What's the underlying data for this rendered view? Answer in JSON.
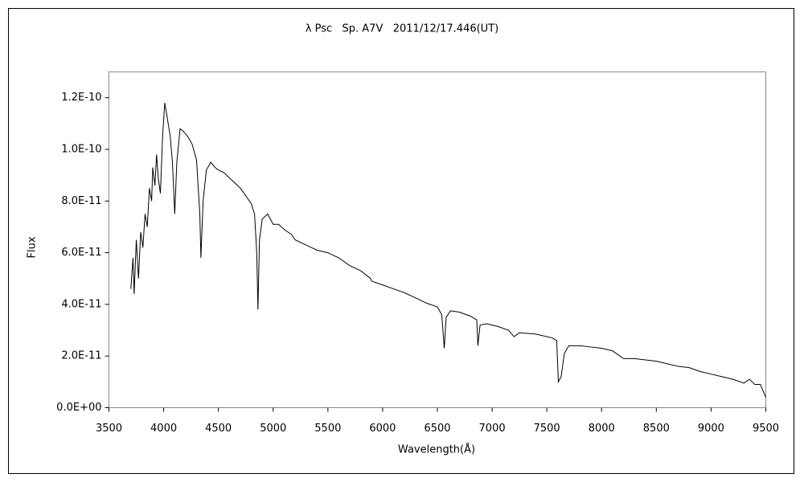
{
  "chart_data": {
    "type": "line",
    "title": "λ Psc   Sp. A7V   2011/12/17.446(UT)",
    "xlabel": "Wavelength(Å)",
    "ylabel": "Flux",
    "color": "#000000",
    "x": [
      3700,
      3720,
      3730,
      3750,
      3770,
      3790,
      3810,
      3830,
      3850,
      3870,
      3890,
      3900,
      3920,
      3935,
      3950,
      3970,
      3990,
      4010,
      4030,
      4060,
      4080,
      4101,
      4120,
      4150,
      4180,
      4220,
      4260,
      4300,
      4330,
      4340,
      4360,
      4390,
      4430,
      4470,
      4500,
      4550,
      4600,
      4650,
      4700,
      4750,
      4800,
      4830,
      4850,
      4861,
      4875,
      4900,
      4950,
      5000,
      5050,
      5100,
      5170,
      5200,
      5300,
      5400,
      5500,
      5600,
      5700,
      5800,
      5890,
      5900,
      6000,
      6100,
      6200,
      6300,
      6400,
      6500,
      6540,
      6563,
      6580,
      6620,
      6700,
      6800,
      6860,
      6870,
      6890,
      6950,
      7050,
      7150,
      7200,
      7250,
      7400,
      7550,
      7590,
      7605,
      7630,
      7660,
      7700,
      7800,
      7900,
      8000,
      8100,
      8150,
      8200,
      8300,
      8400,
      8500,
      8600,
      8700,
      8800,
      8900,
      9000,
      9100,
      9200,
      9300,
      9350,
      9400,
      9450,
      9480,
      9500
    ],
    "values": [
      4.6e-11,
      5.8e-11,
      4.4e-11,
      6.5e-11,
      5e-11,
      6.8e-11,
      6.2e-11,
      7.5e-11,
      7e-11,
      8.5e-11,
      8e-11,
      9.3e-11,
      8.6e-11,
      9.8e-11,
      8.9e-11,
      8.3e-11,
      1.05e-10,
      1.18e-10,
      1.13e-10,
      1.05e-10,
      9.5e-11,
      7.5e-11,
      9.5e-11,
      1.08e-10,
      1.07e-10,
      1.05e-10,
      1.02e-10,
      9.6e-11,
      7.5e-11,
      5.8e-11,
      8e-11,
      9.2e-11,
      9.5e-11,
      9.3e-11,
      9.2e-11,
      9.1e-11,
      8.9e-11,
      8.7e-11,
      8.5e-11,
      8.2e-11,
      7.9e-11,
      7.5e-11,
      6e-11,
      3.8e-11,
      6.5e-11,
      7.3e-11,
      7.5e-11,
      7.1e-11,
      7.1e-11,
      6.9e-11,
      6.7e-11,
      6.5e-11,
      6.3e-11,
      6.1e-11,
      6e-11,
      5.8e-11,
      5.5e-11,
      5.3e-11,
      5e-11,
      4.9e-11,
      4.75e-11,
      4.6e-11,
      4.45e-11,
      4.25e-11,
      4.05e-11,
      3.9e-11,
      3.6e-11,
      2.3e-11,
      3.5e-11,
      3.75e-11,
      3.7e-11,
      3.55e-11,
      3.4e-11,
      2.4e-11,
      3.2e-11,
      3.25e-11,
      3.15e-11,
      3e-11,
      2.75e-11,
      2.9e-11,
      2.85e-11,
      2.7e-11,
      2.6e-11,
      1e-11,
      1.2e-11,
      2.1e-11,
      2.4e-11,
      2.4e-11,
      2.35e-11,
      2.3e-11,
      2.2e-11,
      2.05e-11,
      1.9e-11,
      1.9e-11,
      1.85e-11,
      1.8e-11,
      1.7e-11,
      1.6e-11,
      1.55e-11,
      1.4e-11,
      1.3e-11,
      1.2e-11,
      1.1e-11,
      9.5e-12,
      1.1e-11,
      9e-12,
      9e-12,
      6e-12,
      4e-12
    ],
    "xlim": [
      3500,
      9500
    ],
    "xticks": [
      3500,
      4000,
      4500,
      5000,
      5500,
      6000,
      6500,
      7000,
      7500,
      8000,
      8500,
      9000,
      9500
    ],
    "ylim": [
      0,
      1.3e-10
    ],
    "yticks": [
      {
        "value": 0,
        "label": "0.0E+00"
      },
      {
        "value": 2e-11,
        "label": "2.0E-11"
      },
      {
        "value": 4e-11,
        "label": "4.0E-11"
      },
      {
        "value": 6e-11,
        "label": "6.0E-11"
      },
      {
        "value": 8e-11,
        "label": "8.0E-11"
      },
      {
        "value": 1e-10,
        "label": "1.0E-10"
      },
      {
        "value": 1.2e-10,
        "label": "1.2E-10"
      }
    ],
    "grid": false
  }
}
